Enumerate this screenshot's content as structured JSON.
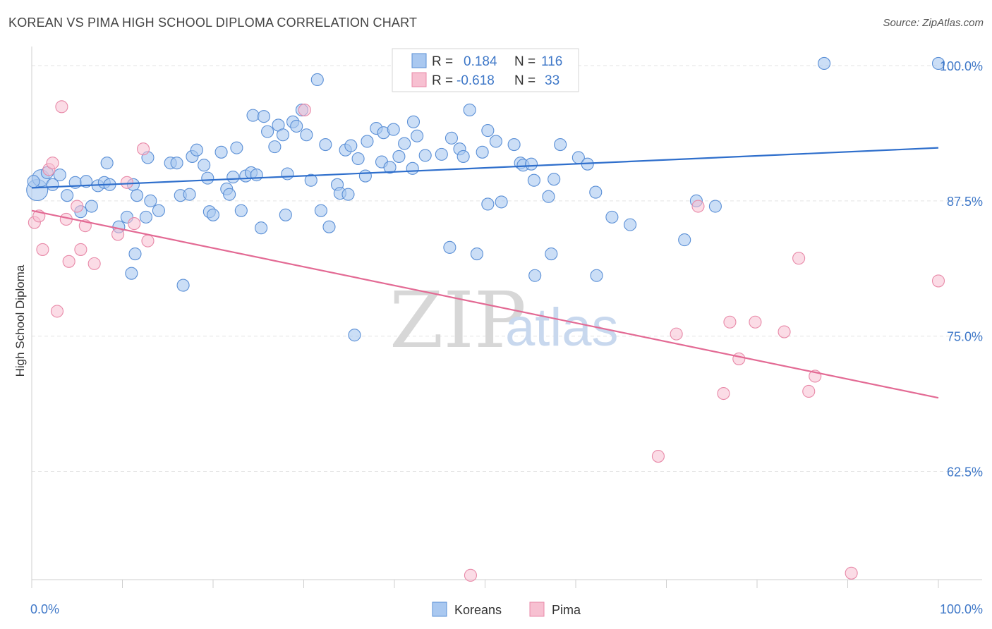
{
  "title": "KOREAN VS PIMA HIGH SCHOOL DIPLOMA CORRELATION CHART",
  "source": "Source: ZipAtlas.com",
  "watermark": {
    "zip": "ZIP",
    "atlas": "atlas"
  },
  "legend": {
    "rows": [
      {
        "r_label": "R =",
        "r_value": "0.184",
        "n_label": "N =",
        "n_value": "116"
      },
      {
        "r_label": "R =",
        "r_value": "-0.618",
        "n_label": "N =",
        "n_value": "33"
      }
    ]
  },
  "bottom_legend": [
    "Koreans",
    "Pima"
  ],
  "colors": {
    "korean_fill": "#a9c8f0",
    "korean_stroke": "#5a8fd6",
    "korean_line": "#2f6fcc",
    "pima_fill": "#f7c0d1",
    "pima_stroke": "#e889a8",
    "pima_line": "#e36a94",
    "tick_text": "#3f78c8",
    "grid": "#e3e3e3"
  },
  "chart_data": {
    "type": "scatter",
    "title": "KOREAN VS PIMA HIGH SCHOOL DIPLOMA CORRELATION CHART",
    "xlabel": "",
    "ylabel": "High School Diploma",
    "xlim": [
      0,
      100
    ],
    "ylim": [
      52.5,
      101.5
    ],
    "x_tick_labels": [
      "0.0%",
      "100.0%"
    ],
    "y_ticks": [
      100.0,
      87.5,
      75.0,
      62.5
    ],
    "y_tick_labels": [
      "100.0%",
      "87.5%",
      "75.0%",
      "62.5%"
    ],
    "grid": true,
    "legend_position": "top-center",
    "series": [
      {
        "name": "Koreans",
        "trend": [
          [
            0,
            88.7
          ],
          [
            100,
            92.4
          ]
        ],
        "points": [
          [
            0.6,
            88.5
          ],
          [
            1.0,
            89.6
          ],
          [
            1.7,
            90.1
          ],
          [
            2.3,
            89.0
          ],
          [
            3.1,
            89.9
          ],
          [
            3.9,
            88.0
          ],
          [
            4.8,
            89.2
          ],
          [
            5.4,
            86.5
          ],
          [
            6.0,
            89.3
          ],
          [
            6.6,
            87.0
          ],
          [
            7.3,
            88.9
          ],
          [
            8.0,
            89.2
          ],
          [
            8.6,
            89.0
          ],
          [
            9.6,
            85.1
          ],
          [
            10.5,
            86.0
          ],
          [
            11.2,
            89.0
          ],
          [
            11.6,
            88.0
          ],
          [
            11.0,
            80.8
          ],
          [
            11.4,
            82.6
          ],
          [
            12.6,
            86.0
          ],
          [
            13.1,
            87.5
          ],
          [
            14.0,
            86.6
          ],
          [
            12.8,
            91.5
          ],
          [
            15.3,
            91.0
          ],
          [
            16.0,
            91.0
          ],
          [
            16.4,
            88.0
          ],
          [
            17.7,
            91.6
          ],
          [
            18.2,
            92.2
          ],
          [
            19.0,
            90.8
          ],
          [
            19.4,
            89.6
          ],
          [
            19.6,
            86.5
          ],
          [
            20.0,
            86.2
          ],
          [
            20.9,
            92.0
          ],
          [
            21.5,
            88.6
          ],
          [
            21.8,
            88.1
          ],
          [
            22.6,
            92.4
          ],
          [
            23.1,
            86.6
          ],
          [
            23.6,
            89.8
          ],
          [
            24.2,
            90.1
          ],
          [
            24.4,
            95.4
          ],
          [
            25.3,
            85.0
          ],
          [
            25.6,
            95.3
          ],
          [
            26.0,
            93.9
          ],
          [
            26.8,
            92.5
          ],
          [
            27.2,
            94.5
          ],
          [
            27.7,
            93.6
          ],
          [
            28.2,
            90.0
          ],
          [
            28.8,
            94.8
          ],
          [
            29.2,
            94.4
          ],
          [
            29.8,
            95.9
          ],
          [
            30.3,
            93.6
          ],
          [
            30.8,
            89.4
          ],
          [
            31.5,
            98.7
          ],
          [
            31.9,
            86.6
          ],
          [
            32.4,
            92.7
          ],
          [
            32.8,
            85.1
          ],
          [
            33.7,
            89.0
          ],
          [
            34.0,
            88.2
          ],
          [
            34.9,
            88.1
          ],
          [
            34.6,
            92.2
          ],
          [
            35.6,
            75.1
          ],
          [
            36.0,
            91.4
          ],
          [
            36.8,
            89.8
          ],
          [
            37.0,
            93.0
          ],
          [
            38.0,
            94.2
          ],
          [
            38.6,
            91.1
          ],
          [
            38.8,
            93.8
          ],
          [
            39.5,
            90.6
          ],
          [
            39.9,
            94.1
          ],
          [
            40.5,
            91.6
          ],
          [
            41.1,
            92.8
          ],
          [
            42.1,
            94.8
          ],
          [
            42.5,
            93.5
          ],
          [
            43.4,
            91.7
          ],
          [
            45.2,
            91.8
          ],
          [
            46.1,
            83.2
          ],
          [
            46.3,
            93.3
          ],
          [
            47.2,
            92.3
          ],
          [
            47.6,
            91.6
          ],
          [
            48.3,
            95.9
          ],
          [
            49.1,
            82.6
          ],
          [
            49.7,
            92.0
          ],
          [
            50.3,
            94.0
          ],
          [
            50.3,
            87.2
          ],
          [
            51.2,
            93.0
          ],
          [
            51.8,
            87.4
          ],
          [
            53.2,
            92.7
          ],
          [
            53.9,
            91.0
          ],
          [
            54.2,
            90.8
          ],
          [
            55.4,
            89.4
          ],
          [
            55.5,
            80.6
          ],
          [
            57.0,
            87.9
          ],
          [
            57.3,
            82.6
          ],
          [
            57.6,
            89.5
          ],
          [
            58.3,
            92.7
          ],
          [
            60.3,
            91.5
          ],
          [
            61.3,
            90.9
          ],
          [
            62.2,
            88.3
          ],
          [
            62.3,
            80.6
          ],
          [
            66.0,
            85.3
          ],
          [
            72.0,
            83.9
          ],
          [
            73.3,
            87.5
          ],
          [
            75.4,
            87.0
          ],
          [
            87.4,
            100.2
          ],
          [
            100.0,
            100.2
          ],
          [
            0.2,
            89.3
          ],
          [
            16.7,
            79.7
          ],
          [
            17.4,
            88.1
          ],
          [
            28.0,
            86.2
          ],
          [
            42.0,
            90.5
          ],
          [
            55.1,
            90.9
          ],
          [
            64.0,
            86.0
          ],
          [
            35.2,
            92.6
          ],
          [
            22.2,
            89.7
          ],
          [
            8.3,
            91.0
          ],
          [
            24.8,
            89.9
          ]
        ]
      },
      {
        "name": "Pima",
        "trend": [
          [
            0,
            86.6
          ],
          [
            100,
            69.3
          ]
        ],
        "points": [
          [
            0.3,
            85.5
          ],
          [
            0.8,
            86.1
          ],
          [
            1.2,
            83.0
          ],
          [
            1.9,
            90.4
          ],
          [
            2.3,
            91.0
          ],
          [
            2.8,
            77.3
          ],
          [
            3.3,
            96.2
          ],
          [
            3.8,
            85.8
          ],
          [
            4.1,
            81.9
          ],
          [
            5.0,
            87.0
          ],
          [
            5.4,
            83.0
          ],
          [
            5.9,
            85.2
          ],
          [
            6.9,
            81.7
          ],
          [
            9.5,
            84.4
          ],
          [
            10.5,
            89.2
          ],
          [
            11.3,
            85.4
          ],
          [
            12.3,
            92.3
          ],
          [
            12.8,
            83.8
          ],
          [
            30.1,
            95.9
          ],
          [
            48.4,
            52.9
          ],
          [
            69.1,
            63.9
          ],
          [
            71.1,
            75.2
          ],
          [
            73.5,
            87.0
          ],
          [
            76.3,
            69.7
          ],
          [
            77.0,
            76.3
          ],
          [
            78.0,
            72.9
          ],
          [
            79.8,
            76.3
          ],
          [
            83.0,
            75.4
          ],
          [
            84.6,
            82.2
          ],
          [
            85.7,
            69.9
          ],
          [
            86.4,
            71.3
          ],
          [
            90.4,
            53.1
          ],
          [
            100.0,
            80.1
          ]
        ]
      }
    ]
  }
}
